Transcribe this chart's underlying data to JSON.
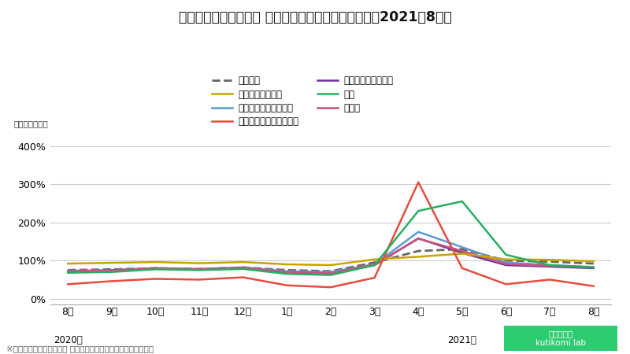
{
  "title": "外食産業市場動向調査 業態別売上高（前年同月比）【2021年8月】",
  "ylabel": "（前年同月比）",
  "footnote": "※日本フードサービス協会 外食産業市場動向調査より編集部作成",
  "x_labels": [
    "8月",
    "9月",
    "10月",
    "11月",
    "12月",
    "1月",
    "2月",
    "3月",
    "4月",
    "5月",
    "6月",
    "7月",
    "8月"
  ],
  "series": {
    "全　　体": {
      "color": "#666666",
      "linestyle": "dashed",
      "linewidth": 2.0,
      "values": [
        75,
        77,
        80,
        78,
        82,
        75,
        72,
        95,
        125,
        130,
        100,
        97,
        92
      ]
    },
    "ファミリーレストラン": {
      "color": "#5B9BD5",
      "linestyle": "solid",
      "linewidth": 1.8,
      "values": [
        73,
        75,
        80,
        78,
        82,
        72,
        70,
        90,
        175,
        135,
        95,
        88,
        83
      ]
    },
    "ディナーレストラン": {
      "color": "#7030A0",
      "linestyle": "solid",
      "linewidth": 1.8,
      "values": [
        70,
        74,
        79,
        76,
        80,
        68,
        65,
        88,
        158,
        120,
        88,
        84,
        80
      ]
    },
    "その他": {
      "color": "#C9547C",
      "linestyle": "solid",
      "linewidth": 1.8,
      "values": [
        72,
        74,
        80,
        77,
        81,
        70,
        67,
        90,
        157,
        125,
        91,
        86,
        82
      ]
    },
    "ファーストフード": {
      "color": "#C8A400",
      "linestyle": "solid",
      "linewidth": 1.8,
      "values": [
        92,
        94,
        96,
        93,
        96,
        90,
        88,
        103,
        110,
        118,
        103,
        102,
        98
      ]
    },
    "パブレストラン／居酒屋": {
      "color": "#E74C3C",
      "linestyle": "solid",
      "linewidth": 1.8,
      "values": [
        38,
        46,
        52,
        50,
        56,
        35,
        30,
        55,
        305,
        80,
        38,
        50,
        33
      ]
    },
    "喫茶": {
      "color": "#27AE60",
      "linestyle": "solid",
      "linewidth": 1.8,
      "values": [
        68,
        70,
        77,
        75,
        78,
        65,
        62,
        88,
        230,
        255,
        115,
        88,
        82
      ]
    }
  },
  "yticks": [
    0,
    100,
    200,
    300,
    400
  ],
  "ylim": [
    -15,
    430
  ],
  "background_color": "#ffffff",
  "grid_color": "#cccccc",
  "logo_text": "口コミラボ\nkutikomi lab",
  "logo_color": "#2ecc71",
  "legend_order": [
    "全　　体",
    "ファーストフード",
    "ファミリーレストラン",
    "パブレストラン／居酒屋",
    "ディナーレストラン",
    "喫茶",
    "その他"
  ]
}
